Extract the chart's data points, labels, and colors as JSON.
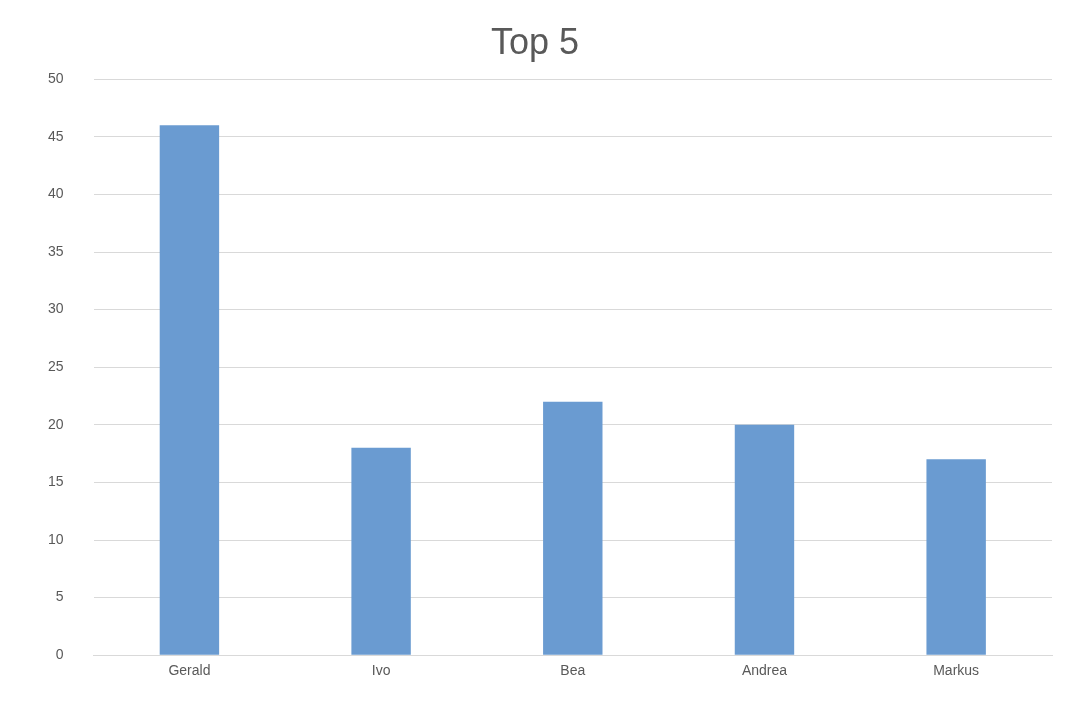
{
  "chart_data": {
    "type": "bar",
    "title": "Top 5",
    "categories": [
      "Gerald",
      "Ivo",
      "Bea",
      "Andrea",
      "Markus"
    ],
    "values": [
      46,
      18,
      22,
      20,
      17
    ],
    "color": "#6a9bd1",
    "ylim": [
      0,
      50
    ],
    "yticks": [
      0,
      5,
      10,
      15,
      20,
      25,
      30,
      35,
      40,
      45,
      50
    ],
    "grid": "y"
  }
}
